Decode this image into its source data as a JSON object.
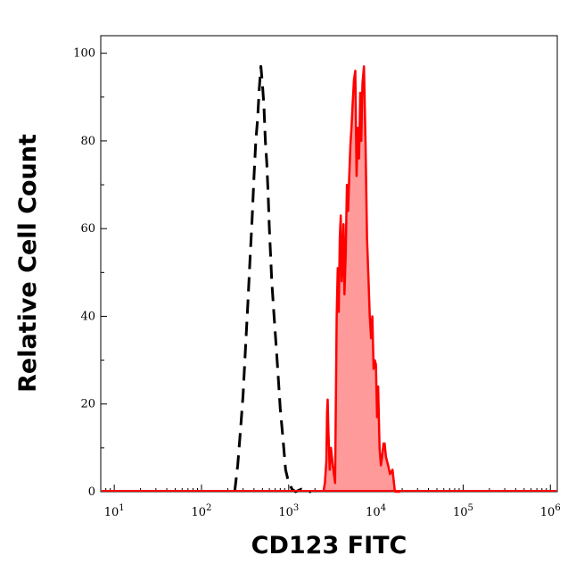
{
  "chart_data": {
    "type": "area",
    "xlabel": "CD123 FITC",
    "ylabel": "Relative Cell Count",
    "xscale": "log",
    "xlim": [
      7,
      1200000
    ],
    "ylim": [
      0,
      104
    ],
    "x_ticks": [
      {
        "base": "10",
        "exp": "1",
        "value": 10
      },
      {
        "base": "10",
        "exp": "2",
        "value": 100
      },
      {
        "base": "10",
        "exp": "3",
        "value": 1000
      },
      {
        "base": "10",
        "exp": "4",
        "value": 10000
      },
      {
        "base": "10",
        "exp": "5",
        "value": 100000
      },
      {
        "base": "10",
        "exp": "6",
        "value": 1000000
      }
    ],
    "y_ticks": [
      "0",
      "20",
      "40",
      "60",
      "80",
      "100"
    ],
    "grid": false,
    "legend": "none",
    "series": [
      {
        "style": "dashed",
        "color": "#000000",
        "fill": "none",
        "x": [
          240,
          260,
          280,
          300,
          320,
          340,
          360,
          380,
          400,
          420,
          440,
          460,
          480,
          500,
          520,
          540,
          560,
          580,
          600,
          640,
          680,
          720,
          760,
          800,
          860,
          920,
          1000,
          1100,
          1200,
          1400,
          1600,
          1800
        ],
        "y": [
          0,
          6,
          14,
          22,
          33,
          43,
          53,
          62,
          72,
          80,
          85,
          92,
          97,
          93,
          88,
          80,
          75,
          68,
          60,
          48,
          40,
          33,
          26,
          19,
          12,
          5,
          2,
          0.5,
          0,
          0.6,
          0,
          0
        ]
      },
      {
        "style": "solid",
        "color": "#ff0000",
        "fill": "#ff9a9a",
        "x": [
          2500,
          2600,
          2700,
          2750,
          2800,
          2850,
          2950,
          3050,
          3200,
          3400,
          3550,
          3650,
          3750,
          3850,
          3950,
          4050,
          4150,
          4250,
          4350,
          4500,
          4650,
          4800,
          4950,
          5100,
          5250,
          5400,
          5600,
          5800,
          6000,
          6200,
          6400,
          6600,
          6800,
          7000,
          7300,
          7600,
          7900,
          8200,
          8500,
          8800,
          9100,
          9400,
          9700,
          10000,
          10300,
          10600,
          11000,
          11400,
          11800,
          12200,
          12600,
          13000,
          13400,
          13800,
          14500,
          15500,
          16500,
          17500,
          19000
        ],
        "y": [
          0,
          2,
          7,
          18,
          21,
          14,
          5,
          10,
          6,
          2,
          40,
          51,
          41,
          58,
          63,
          48,
          53,
          61,
          45,
          54,
          70,
          64,
          72,
          79,
          83,
          88,
          94,
          96,
          72,
          83,
          76,
          91,
          80,
          93,
          97,
          79,
          58,
          49,
          40,
          35,
          40,
          28,
          30,
          29,
          17,
          24,
          10,
          6,
          8,
          11,
          11,
          8,
          7,
          6,
          4,
          5,
          0,
          0,
          0
        ]
      }
    ]
  }
}
